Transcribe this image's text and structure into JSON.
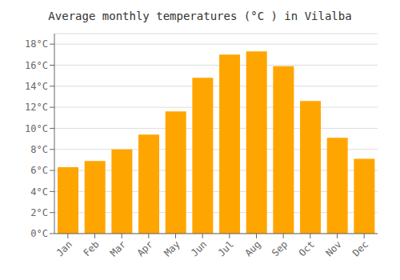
{
  "chart_data": {
    "type": "bar",
    "title": "Average monthly temperatures (°C ) in Vilalba",
    "categories": [
      "Jan",
      "Feb",
      "Mar",
      "Apr",
      "May",
      "Jun",
      "Jul",
      "Aug",
      "Sep",
      "Oct",
      "Nov",
      "Dec"
    ],
    "values": [
      6.3,
      6.9,
      8.0,
      9.4,
      11.6,
      14.8,
      17.0,
      17.3,
      15.9,
      12.6,
      9.1,
      7.1
    ],
    "color": "#FFA500",
    "ylim": [
      0,
      19
    ],
    "yticks": [
      {
        "value": 0,
        "label": "0°C"
      },
      {
        "value": 2,
        "label": "2°C"
      },
      {
        "value": 4,
        "label": "4°C"
      },
      {
        "value": 6,
        "label": "6°C"
      },
      {
        "value": 8,
        "label": "8°C"
      },
      {
        "value": 10,
        "label": "10°C"
      },
      {
        "value": 12,
        "label": "12°C"
      },
      {
        "value": 14,
        "label": "14°C"
      },
      {
        "value": 16,
        "label": "16°C"
      },
      {
        "value": 18,
        "label": "18°C"
      }
    ],
    "grid": true
  }
}
